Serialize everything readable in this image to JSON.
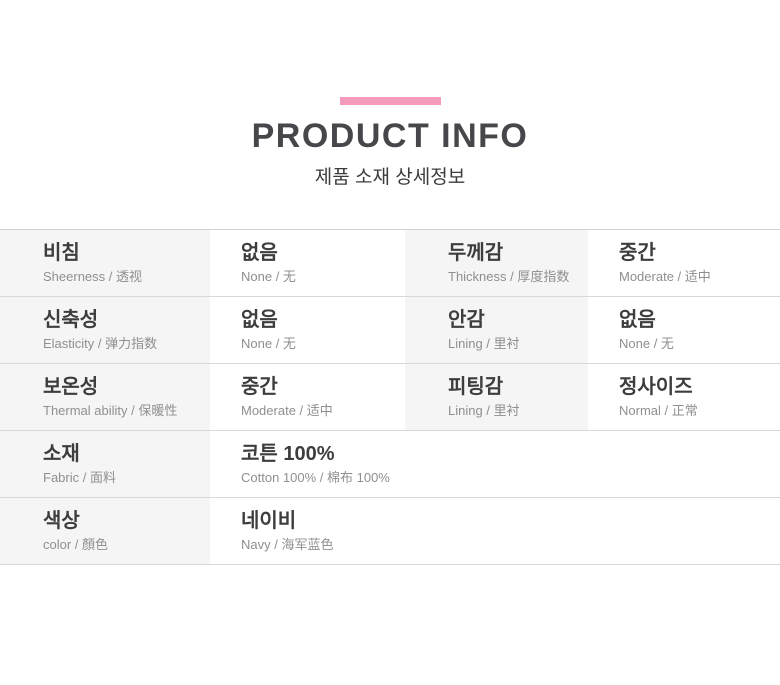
{
  "header": {
    "title": "PRODUCT INFO",
    "subtitle": "제품 소재 상세정보",
    "accent_color": "#f49abc"
  },
  "colors": {
    "label_cell_bg": "#f5f5f5",
    "border": "#d8d8d8",
    "main_text": "#3d3d3d",
    "sub_text": "#8f8f8f"
  },
  "table": {
    "rows": [
      {
        "cells": [
          {
            "main": "비침",
            "sub": "Sheerness / 透视"
          },
          {
            "main": "없음",
            "sub": "None / 无"
          },
          {
            "main": "두께감",
            "sub": "Thickness / 厚度指数"
          },
          {
            "main": "중간",
            "sub": "Moderate / 适中"
          }
        ]
      },
      {
        "cells": [
          {
            "main": "신축성",
            "sub": "Elasticity / 弹力指数"
          },
          {
            "main": "없음",
            "sub": "None / 无"
          },
          {
            "main": "안감",
            "sub": "Lining / 里衬"
          },
          {
            "main": "없음",
            "sub": "None / 无"
          }
        ]
      },
      {
        "cells": [
          {
            "main": "보온성",
            "sub": "Thermal ability / 保暖性"
          },
          {
            "main": "중간",
            "sub": "Moderate / 适中"
          },
          {
            "main": "피팅감",
            "sub": "Lining / 里衬"
          },
          {
            "main": "정사이즈",
            "sub": "Normal / 正常"
          }
        ]
      },
      {
        "cells": [
          {
            "main": "소재",
            "sub": "Fabric / 面料"
          },
          {
            "main": "코튼 100%",
            "sub": "Cotton 100% / 棉布 100%"
          }
        ]
      },
      {
        "cells": [
          {
            "main": "색상",
            "sub": "color / 顏色"
          },
          {
            "main": "네이비",
            "sub": "Navy / 海军蓝色"
          }
        ]
      }
    ]
  }
}
